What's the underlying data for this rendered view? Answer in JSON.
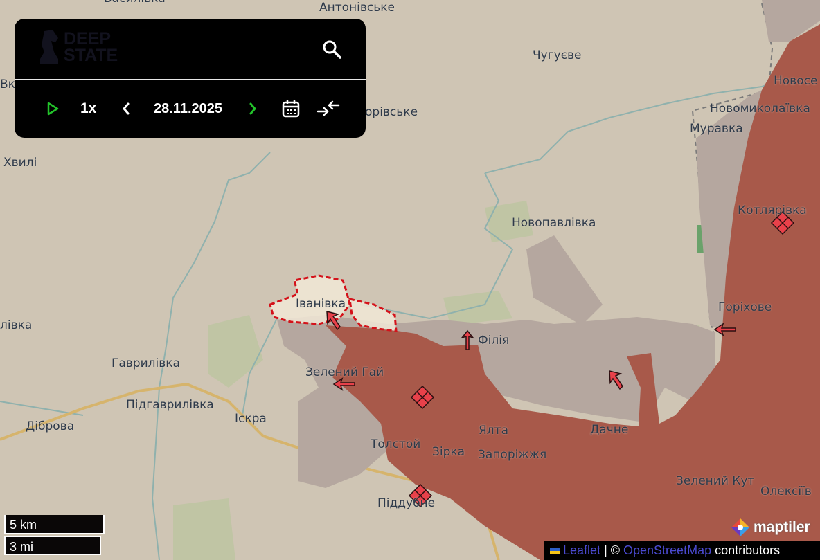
{
  "colors": {
    "land": "#cfc5b4",
    "occupied": "#a8594a",
    "contested": "#b5a79f",
    "liberated": "#f1e8d6",
    "liberated_border": "#d4121a",
    "marker": "#e8414a",
    "river": "#8eb2ae",
    "fields": "#b7c49a",
    "road": "#d9b46a",
    "panel_bg": "#000000",
    "accent_green": "#22c32a"
  },
  "panel": {
    "logo_text_line1": "DEEP",
    "logo_text_line2": "STATE",
    "search_icon": "search-icon",
    "speed": "1x",
    "date": "28.11.2025",
    "icons": [
      "play-icon",
      "chevron-left-icon",
      "chevron-right-icon",
      "calendar-icon",
      "collapse-arrows-icon"
    ]
  },
  "places": [
    {
      "name": "Василівка"
    },
    {
      "name": "Антонівське"
    },
    {
      "name": "Чугуєве"
    },
    {
      "name": "Вк"
    },
    {
      "name": "орівське"
    },
    {
      "name": "Новосе"
    },
    {
      "name": "Новомиколаївка"
    },
    {
      "name": "Муравка"
    },
    {
      "name": "Хвилі"
    },
    {
      "name": "Новопавлівка"
    },
    {
      "name": "Котлярівка"
    },
    {
      "name": "Іванівка"
    },
    {
      "name": "Горіхове"
    },
    {
      "name": "лівка"
    },
    {
      "name": "Філія"
    },
    {
      "name": "Гаврилівка"
    },
    {
      "name": "Зелений Гай"
    },
    {
      "name": "Підгаврилівка"
    },
    {
      "name": "Іскра"
    },
    {
      "name": "Діброва"
    },
    {
      "name": "Толстой"
    },
    {
      "name": "Ялта"
    },
    {
      "name": "Дачне"
    },
    {
      "name": "Зірка"
    },
    {
      "name": "Запоріжжя"
    },
    {
      "name": "Зелений Кут"
    },
    {
      "name": "Олексіїв"
    },
    {
      "name": "Піддубне"
    }
  ],
  "scale": {
    "metric": "5 km",
    "imperial": "3 mi"
  },
  "attribution": {
    "leaflet": "Leaflet",
    "separator": " | © ",
    "osm": "OpenStreetMap",
    "suffix": " contributors",
    "maptiler": "maptiler"
  }
}
